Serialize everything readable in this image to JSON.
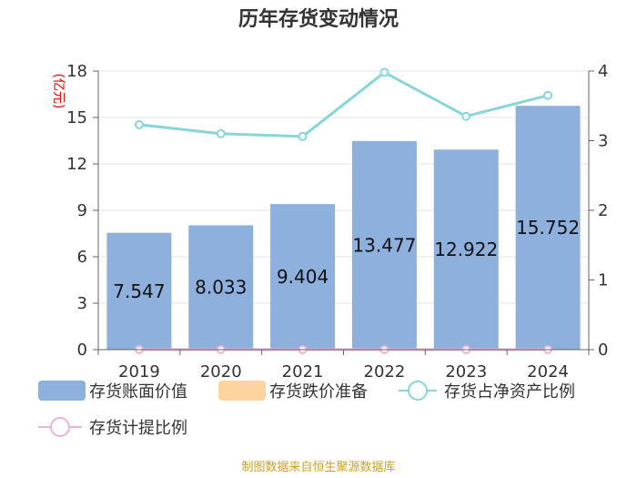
{
  "title": "历年存货变动情况",
  "source": "制图数据来自恒生聚源数据库",
  "colors": {
    "bar": "#8eb0dc",
    "impairment": "#fdd49e",
    "ratio_line": "#88d6d9",
    "provision_line": "#e8b4d8",
    "axis": "#666666",
    "grid": "#e6e6e6",
    "unit": "#e60000"
  },
  "chart_data": {
    "type": "bar",
    "categories": [
      "2019",
      "2020",
      "2021",
      "2022",
      "2023",
      "2024"
    ],
    "y_left": {
      "unit_label": "(亿元)",
      "ticks": [
        0,
        3,
        6,
        9,
        12,
        15,
        18
      ],
      "ylim": [
        0,
        18
      ]
    },
    "y_right": {
      "ticks": [
        0,
        1,
        2,
        3,
        4
      ],
      "ylim": [
        0,
        4
      ]
    },
    "series": [
      {
        "name": "存货账面价值",
        "type": "bar",
        "axis": "left",
        "values": [
          7.547,
          8.033,
          9.404,
          13.477,
          12.922,
          15.752
        ],
        "labels": [
          "7.547",
          "8.033",
          "9.404",
          "13.477",
          "12.922",
          "15.752"
        ]
      },
      {
        "name": "存货跌价准备",
        "type": "bar",
        "axis": "left",
        "values": [
          0,
          0,
          0,
          0,
          0,
          0
        ]
      },
      {
        "name": "存货占净资产比例",
        "type": "line",
        "axis": "right",
        "values": [
          3.23,
          3.1,
          3.06,
          3.98,
          3.35,
          3.65
        ]
      },
      {
        "name": "存货计提比例",
        "type": "line",
        "axis": "right",
        "values": [
          0,
          0,
          0,
          0,
          0,
          0
        ]
      }
    ],
    "grid": true,
    "legend_position": "bottom"
  }
}
